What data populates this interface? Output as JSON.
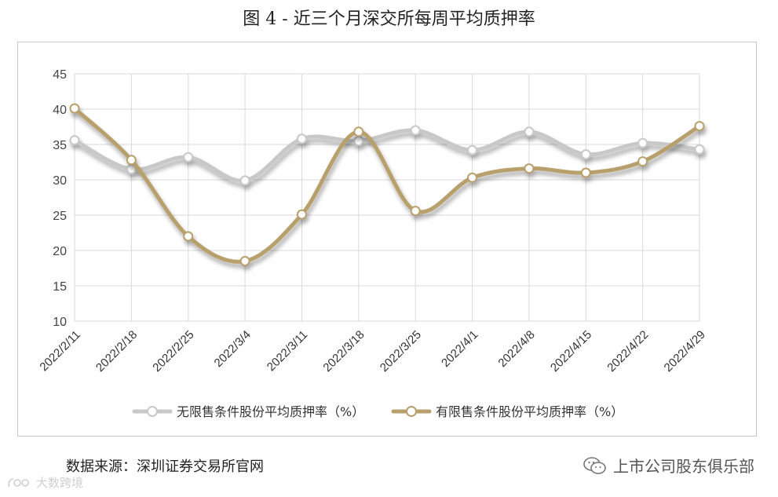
{
  "figure": {
    "title": "图 4 -  近三个月深交所每周平均质押率",
    "source": "数据来源：深圳证券交易所官网",
    "wechat_account": "上市公司股东俱乐部",
    "watermark": "大数跨境"
  },
  "chart_data": {
    "type": "line",
    "smooth": true,
    "categories": [
      "2022/2/11",
      "2022/2/18",
      "2022/2/25",
      "2022/3/4",
      "2022/3/11",
      "2022/3/18",
      "2022/3/25",
      "2022/4/1",
      "2022/4/8",
      "2022/4/15",
      "2022/4/22",
      "2022/4/29"
    ],
    "ylim": [
      10,
      45
    ],
    "yticks": [
      10,
      15,
      20,
      25,
      30,
      35,
      40,
      45
    ],
    "grid": true,
    "legend_position": "bottom",
    "series": [
      {
        "name": "无限售条件股份平均质押率（%）",
        "color": "#c8c8c8",
        "values": [
          35.6,
          31.5,
          33.2,
          29.9,
          35.8,
          35.5,
          37.0,
          34.2,
          36.8,
          33.6,
          35.2,
          34.3
        ]
      },
      {
        "name": "有限售条件股份平均质押率（%）",
        "color": "#b8a06c",
        "values": [
          40.1,
          32.8,
          22.0,
          18.5,
          25.1,
          36.8,
          25.6,
          30.3,
          31.6,
          31.0,
          32.6,
          37.6
        ]
      }
    ]
  }
}
